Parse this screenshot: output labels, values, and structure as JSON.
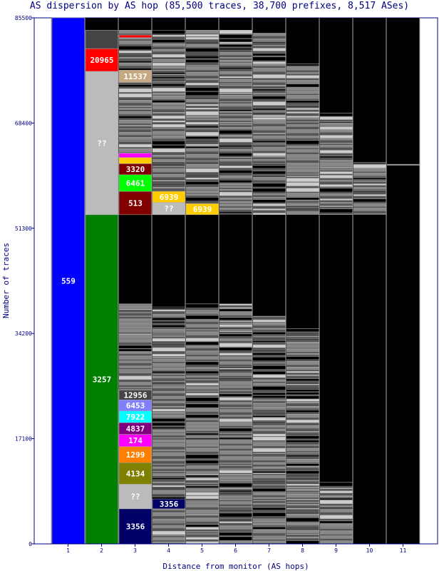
{
  "chart_data": {
    "type": "bar",
    "title": "AS dispersion by AS hop (85,500 traces, 38,700 prefixes, 8,517 ASes)",
    "xlabel": "Distance from monitor (AS hops)",
    "ylabel": "Number of traces",
    "ylim": [
      0,
      85500
    ],
    "y_ticks": [
      "0",
      "17100",
      "34200",
      "51300",
      "68400",
      "85500"
    ],
    "categories": [
      "1",
      "2",
      "3",
      "4",
      "5",
      "6",
      "7",
      "8",
      "9",
      "10",
      "11"
    ],
    "background_color": "#000000",
    "minor_segment_color": "#888888",
    "segment_border_color": "#aaaaaa",
    "stacks": [
      {
        "hop": "1",
        "segments": [
          {
            "label": "559",
            "start": 0,
            "end": 85500,
            "color": "#0000ff",
            "text_color": "#ffffff"
          }
        ]
      },
      {
        "hop": "2",
        "segments": [
          {
            "label": "3257",
            "start": 0,
            "end": 53500,
            "color": "#008000",
            "text_color": "#ffffff"
          },
          {
            "label": "??",
            "start": 53500,
            "end": 76800,
            "color": "#bbbbbb",
            "text_color": "#ffffff"
          },
          {
            "label": "20965",
            "start": 76800,
            "end": 80500,
            "color": "#ff0000",
            "text_color": "#ffffff"
          },
          {
            "label": "",
            "start": 80500,
            "end": 83500,
            "color": "#444444"
          }
        ]
      },
      {
        "hop": "3",
        "segments": [
          {
            "label": "3356",
            "start": 0,
            "end": 5700,
            "color": "#000066",
            "text_color": "#ffffff"
          },
          {
            "label": "??",
            "start": 5700,
            "end": 9700,
            "color": "#bbbbbb",
            "text_color": "#ffffff"
          },
          {
            "label": "4134",
            "start": 9700,
            "end": 13200,
            "color": "#808000",
            "text_color": "#ffffff"
          },
          {
            "label": "1299",
            "start": 13200,
            "end": 15800,
            "color": "#ff8000",
            "text_color": "#ffffff"
          },
          {
            "label": "174",
            "start": 15800,
            "end": 17800,
            "color": "#ff00ff",
            "text_color": "#ffffff"
          },
          {
            "label": "4837",
            "start": 17800,
            "end": 19700,
            "color": "#800080",
            "text_color": "#ffffff"
          },
          {
            "label": "7922",
            "start": 19700,
            "end": 21600,
            "color": "#00ffff",
            "text_color": "#ffffff"
          },
          {
            "label": "6453",
            "start": 21600,
            "end": 23400,
            "color": "#8080ff",
            "text_color": "#ffffff"
          },
          {
            "label": "12956",
            "start": 23400,
            "end": 25000,
            "color": "#444444",
            "text_color": "#ffffff"
          },
          {
            "label": "513",
            "start": 53500,
            "end": 57300,
            "color": "#800000",
            "text_color": "#ffffff"
          },
          {
            "label": "6461",
            "start": 57300,
            "end": 60000,
            "color": "#00ff00",
            "text_color": "#ffffff"
          },
          {
            "label": "3320",
            "start": 60000,
            "end": 61800,
            "color": "#800000",
            "text_color": "#ffffff"
          },
          {
            "label": "",
            "start": 61800,
            "end": 62800,
            "color": "#ffcc00"
          },
          {
            "label": "",
            "start": 62800,
            "end": 63500,
            "color": "#ff00ff"
          },
          {
            "label": "11537",
            "start": 75000,
            "end": 77000,
            "color": "#c8a882",
            "text_color": "#ffffff"
          },
          {
            "label": "",
            "start": 82300,
            "end": 82700,
            "color": "#ff0000"
          }
        ]
      },
      {
        "hop": "4",
        "segments": [
          {
            "label": "3356",
            "start": 5700,
            "end": 7300,
            "color": "#000066",
            "text_color": "#ffffff"
          },
          {
            "label": "??",
            "start": 53500,
            "end": 55500,
            "color": "#bbbbbb",
            "text_color": "#ffffff"
          },
          {
            "label": "6939",
            "start": 55500,
            "end": 57300,
            "color": "#ffcc00",
            "text_color": "#ffffff"
          }
        ]
      },
      {
        "hop": "5",
        "segments": [
          {
            "label": "6939",
            "start": 53500,
            "end": 55300,
            "color": "#ffcc00",
            "text_color": "#ffffff"
          }
        ]
      },
      {
        "hop": "6",
        "segments": []
      },
      {
        "hop": "7",
        "segments": []
      },
      {
        "hop": "8",
        "segments": []
      },
      {
        "hop": "9",
        "segments": []
      },
      {
        "hop": "10",
        "segments": []
      },
      {
        "hop": "11",
        "segments": []
      }
    ],
    "minor_bands": [
      {
        "hop": "2",
        "start": 80500,
        "end": 83500
      },
      {
        "hop": "3",
        "start": 0,
        "end": 39000
      },
      {
        "hop": "3",
        "start": 63500,
        "end": 83500
      },
      {
        "hop": "4",
        "start": 0,
        "end": 38500
      },
      {
        "hop": "4",
        "start": 57300,
        "end": 83500
      },
      {
        "hop": "5",
        "start": 0,
        "end": 39000
      },
      {
        "hop": "5",
        "start": 55300,
        "end": 83500
      },
      {
        "hop": "6",
        "start": 0,
        "end": 39000
      },
      {
        "hop": "6",
        "start": 53500,
        "end": 83500
      },
      {
        "hop": "7",
        "start": 0,
        "end": 37000
      },
      {
        "hop": "7",
        "start": 53500,
        "end": 83000
      },
      {
        "hop": "8",
        "start": 0,
        "end": 35000
      },
      {
        "hop": "8",
        "start": 53500,
        "end": 78000
      },
      {
        "hop": "9",
        "start": 0,
        "end": 10000
      },
      {
        "hop": "9",
        "start": 53500,
        "end": 70000
      },
      {
        "hop": "10",
        "start": 53500,
        "end": 62000
      },
      {
        "hop": "11",
        "start": 61500,
        "end": 61700
      }
    ]
  }
}
